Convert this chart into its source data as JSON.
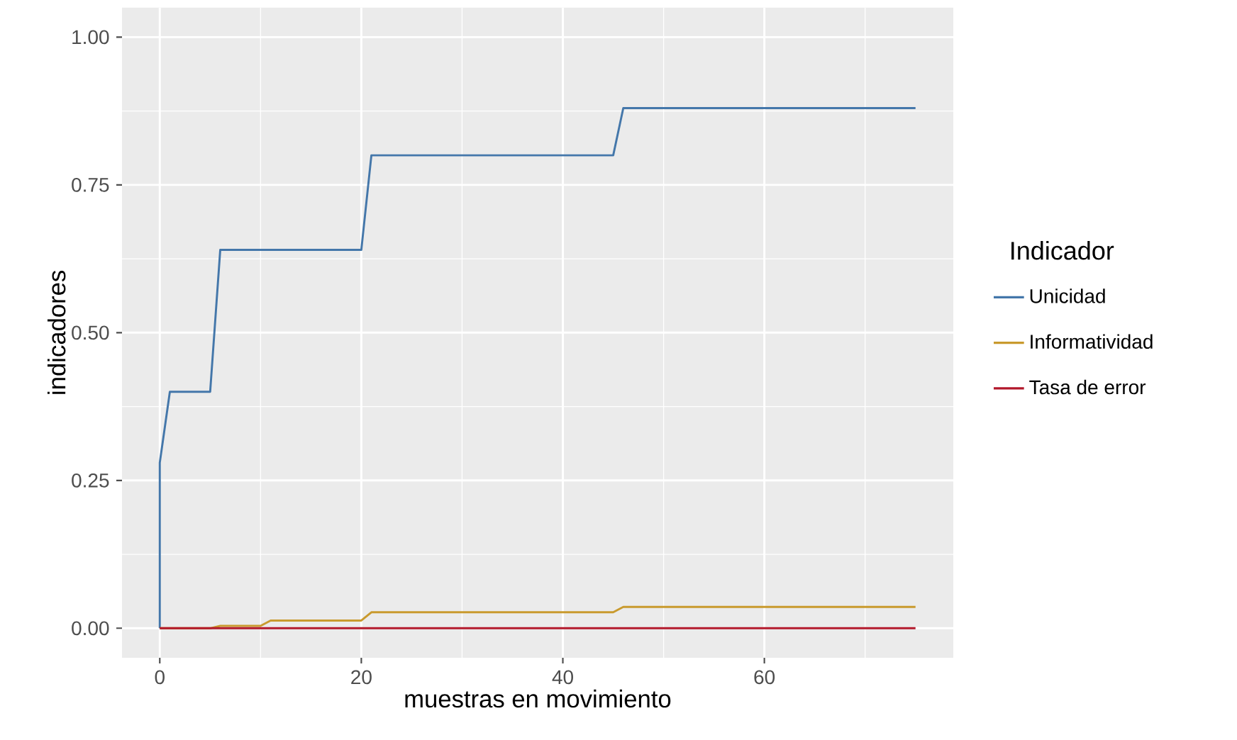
{
  "chart_data": {
    "type": "line",
    "xlabel": "muestras en movimiento",
    "ylabel": "indicadores",
    "legend_title": "Indicador",
    "legend": "right",
    "grid": true,
    "line_style": "solid",
    "xlim": [
      -3.75,
      78.75
    ],
    "ylim": [
      -0.05,
      1.05
    ],
    "xticks": [
      0,
      20,
      40,
      60
    ],
    "yticks": [
      {
        "value": 0,
        "label": "0.00"
      },
      {
        "value": 0.25,
        "label": "0.25"
      },
      {
        "value": 0.5,
        "label": "0.50"
      },
      {
        "value": 0.75,
        "label": "0.75"
      },
      {
        "value": 1,
        "label": "1.00"
      }
    ],
    "series": [
      {
        "name": "Unicidad",
        "color": "#4477aa",
        "x": [
          0,
          0,
          1,
          5,
          6,
          20,
          21,
          45,
          46,
          75
        ],
        "values": [
          0,
          0.28,
          0.4,
          0.4,
          0.64,
          0.64,
          0.8,
          0.8,
          0.88,
          0.88
        ]
      },
      {
        "name": "Informatividad",
        "color": "#c99a2e",
        "x": [
          0,
          5,
          6,
          10,
          11,
          20,
          21,
          45,
          46,
          75
        ],
        "values": [
          0,
          0,
          0.004,
          0.004,
          0.013,
          0.013,
          0.027,
          0.027,
          0.036,
          0.036
        ]
      },
      {
        "name": "Tasa de error",
        "color": "#b2182b",
        "x": [
          0,
          75
        ],
        "values": [
          0,
          0
        ]
      }
    ]
  }
}
